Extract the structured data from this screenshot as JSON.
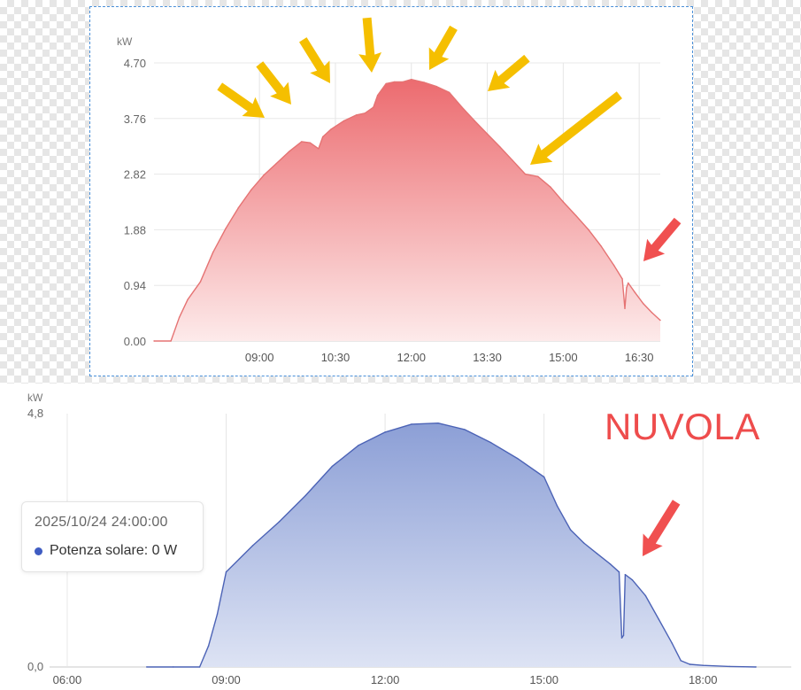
{
  "annotation_text": "NUVOLA",
  "colors": {
    "top_line": "#e57373",
    "top_fill": "#ec6b6f",
    "bottom_line": "#4c63b6",
    "bottom_fill": "#8c9fd6",
    "yellow_arrow": "#f5bf00",
    "red_arrow": "#f05050",
    "annotation": "#ee4c4c"
  },
  "icons": {
    "yellow": "arrow-down-right-icon",
    "red": "arrow-down-left-icon"
  },
  "tooltip": {
    "date": "2025/10/24 24:00:00",
    "series_label": "Potenza solare:",
    "value": "0 W"
  },
  "chart_data": [
    {
      "type": "area",
      "unit_label": "kW",
      "ylim": [
        0,
        4.7
      ],
      "y_ticks": [
        "0.00",
        "0.94",
        "1.88",
        "2.82",
        "3.76",
        "4.70"
      ],
      "x_ticks": [
        "09:00",
        "10:30",
        "12:00",
        "13:30",
        "15:00",
        "16:30"
      ],
      "xlim": [
        "06:55",
        "16:55"
      ],
      "grid": true,
      "series": [
        {
          "x": [
            "06:55",
            "07:15",
            "07:25",
            "07:35",
            "07:50",
            "08:05",
            "08:20",
            "08:35",
            "08:50",
            "09:05",
            "09:20",
            "09:35",
            "09:50",
            "10:00",
            "10:10",
            "10:15",
            "10:25",
            "10:40",
            "10:55",
            "11:05",
            "11:15",
            "11:20",
            "11:30",
            "11:40",
            "11:50",
            "12:00",
            "12:15",
            "12:30",
            "12:45",
            "13:00",
            "13:15",
            "13:30",
            "13:45",
            "14:00",
            "14:15",
            "14:30",
            "14:45",
            "15:00",
            "15:15",
            "15:30",
            "15:45",
            "16:00",
            "16:10",
            "16:13",
            "16:15",
            "16:17",
            "16:25",
            "16:35",
            "16:45",
            "16:55"
          ],
          "values": [
            0,
            0,
            0.4,
            0.7,
            1.0,
            1.5,
            1.9,
            2.25,
            2.55,
            2.8,
            3.0,
            3.2,
            3.37,
            3.35,
            3.25,
            3.45,
            3.58,
            3.72,
            3.82,
            3.85,
            3.95,
            4.15,
            4.35,
            4.38,
            4.38,
            4.42,
            4.37,
            4.3,
            4.2,
            3.95,
            3.72,
            3.5,
            3.28,
            3.05,
            2.82,
            2.78,
            2.6,
            2.35,
            2.12,
            1.88,
            1.6,
            1.28,
            1.05,
            0.55,
            0.9,
            0.98,
            0.82,
            0.63,
            0.48,
            0.35
          ]
        }
      ]
    },
    {
      "type": "area",
      "unit_label": "kW",
      "ylim": [
        0,
        4.8
      ],
      "y_ticks": [
        "0,0",
        "4,8"
      ],
      "x_ticks": [
        "06:00",
        "09:00",
        "12:00",
        "15:00",
        "18:00"
      ],
      "xlim": [
        "05:40",
        "19:40"
      ],
      "grid": true,
      "series": [
        {
          "x": [
            "07:30",
            "08:00",
            "08:30",
            "08:40",
            "08:50",
            "09:00",
            "09:15",
            "09:30",
            "10:00",
            "10:30",
            "11:00",
            "11:30",
            "12:00",
            "12:30",
            "13:00",
            "13:30",
            "14:00",
            "14:30",
            "15:00",
            "15:15",
            "15:30",
            "15:45",
            "16:00",
            "16:15",
            "16:25",
            "16:28",
            "16:30",
            "16:32",
            "16:40",
            "16:55",
            "17:10",
            "17:25",
            "17:35",
            "17:45",
            "18:00",
            "18:30",
            "19:00"
          ],
          "values": [
            0,
            0,
            0,
            0.4,
            1.0,
            1.8,
            2.05,
            2.3,
            2.75,
            3.25,
            3.8,
            4.2,
            4.45,
            4.6,
            4.62,
            4.5,
            4.25,
            3.95,
            3.6,
            3.05,
            2.6,
            2.35,
            2.15,
            1.95,
            1.8,
            0.55,
            0.6,
            1.75,
            1.65,
            1.35,
            0.9,
            0.45,
            0.12,
            0.05,
            0.03,
            0.01,
            0
          ]
        }
      ]
    }
  ]
}
